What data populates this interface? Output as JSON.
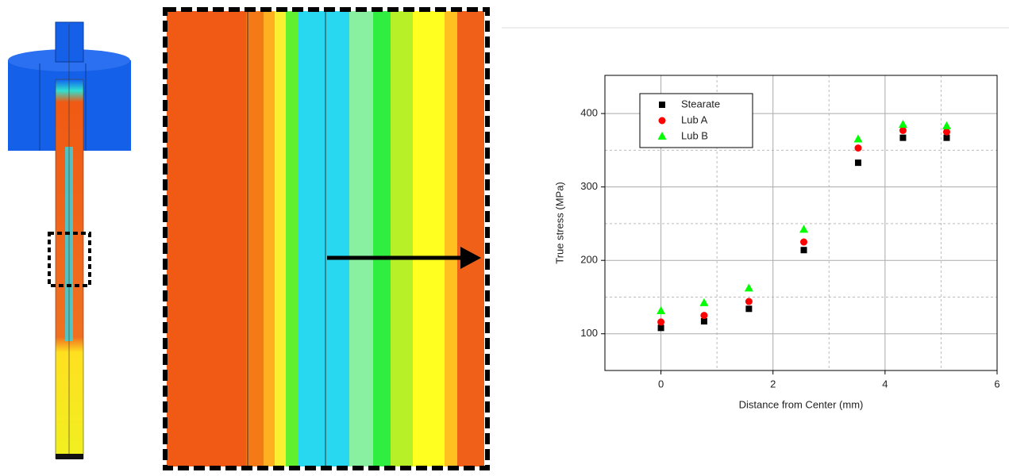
{
  "chart_data": {
    "type": "scatter",
    "x_label": "Distance from Center (mm)",
    "y_label": "True stress (MPa)",
    "x": [
      0,
      0.77,
      1.57,
      2.55,
      3.52,
      4.32,
      5.1
    ],
    "series": [
      {
        "name": "Stearate",
        "color": "#000000",
        "marker": "square",
        "values": [
          108,
          117,
          134,
          214,
          333,
          367,
          367
        ]
      },
      {
        "name": "Lub A",
        "color": "#ff0000",
        "marker": "circle",
        "values": [
          116,
          125,
          144,
          225,
          353,
          377,
          375
        ]
      },
      {
        "name": "Lub B",
        "color": "#00ff00",
        "marker": "triangle",
        "values": [
          131,
          142,
          162,
          242,
          365,
          385,
          383
        ]
      }
    ],
    "xlim": [
      -1,
      6
    ],
    "ylim": [
      50,
      452
    ],
    "xticks": [
      0,
      2,
      4,
      6
    ],
    "yticks": [
      100,
      200,
      300,
      400
    ],
    "x_minor": [
      1,
      3,
      5
    ],
    "y_minor": [
      150,
      250,
      350
    ],
    "grid": true,
    "legend": "upper left"
  }
}
